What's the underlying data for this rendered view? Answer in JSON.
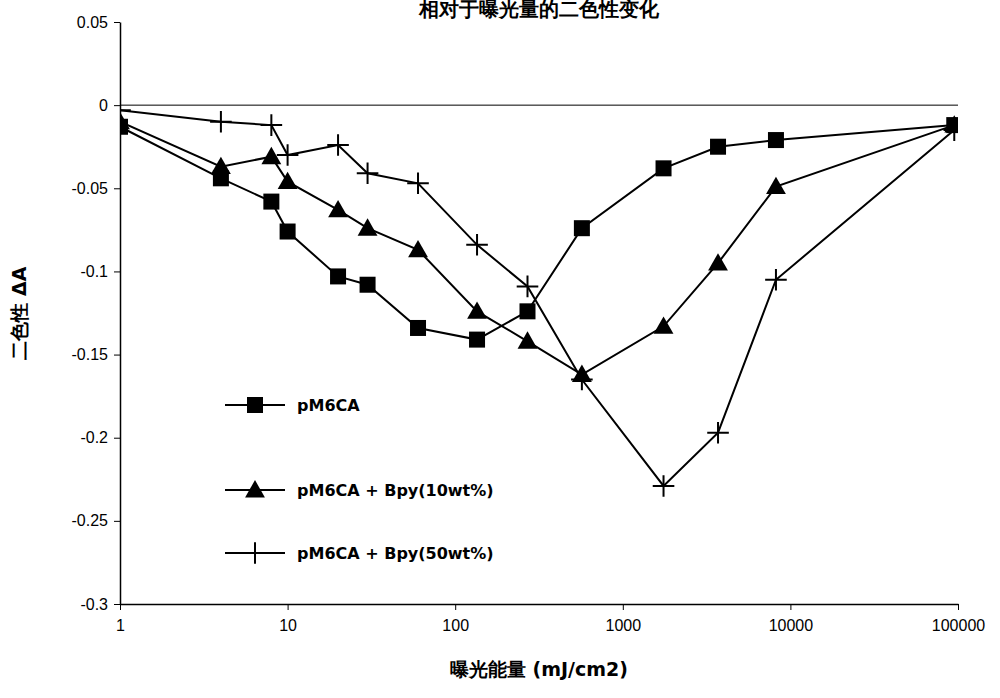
{
  "chart_data": {
    "type": "line",
    "title": "相对于曝光量的二色性变化",
    "x_label": "曝光能量 (mJ/cm2)",
    "y_label": "二色性 ΔA",
    "log": "x",
    "grid": false,
    "legend": "lower left",
    "x": [
      1,
      4,
      8,
      10,
      20,
      30,
      60,
      135,
      270,
      570,
      1750,
      3700,
      8200,
      95000
    ],
    "series": [
      {
        "name": "pM6CA",
        "color": "#000000",
        "marker": "square",
        "line_style": "solid",
        "values": [
          -0.013,
          -0.044,
          -0.058,
          -0.076,
          -0.103,
          -0.108,
          -0.134,
          -0.141,
          -0.124,
          -0.074,
          -0.038,
          -0.025,
          -0.021,
          -0.012
        ]
      },
      {
        "name": "pM6CA + Bpy(10wt%)",
        "color": "#000000",
        "marker": "triangle",
        "line_style": "solid",
        "values": [
          -0.01,
          -0.037,
          -0.031,
          -0.046,
          -0.063,
          -0.074,
          -0.087,
          -0.124,
          -0.142,
          -0.162,
          -0.133,
          -0.095,
          -0.049,
          -0.012
        ]
      },
      {
        "name": "pM6CA + Bpy(50wt%)",
        "color": "#000000",
        "marker": "plus",
        "line_style": "solid",
        "values": [
          -0.003,
          -0.01,
          -0.012,
          -0.03,
          -0.024,
          -0.041,
          -0.047,
          -0.084,
          -0.109,
          -0.165,
          -0.229,
          -0.197,
          -0.105,
          -0.015
        ]
      }
    ],
    "xlim": [
      1,
      100000
    ],
    "xticks": [
      1,
      10,
      100,
      1000,
      10000,
      100000
    ],
    "ylim": [
      -0.3,
      0.05
    ],
    "yticks": [
      -0.3,
      -0.25,
      -0.2,
      -0.15,
      -0.1,
      -0.05,
      0,
      0.05
    ]
  }
}
